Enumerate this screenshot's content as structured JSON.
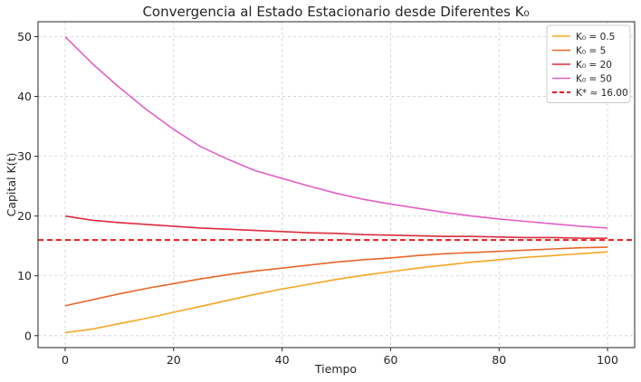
{
  "chart_data": {
    "type": "line",
    "title": "Convergencia al Estado Estacionario desde Diferentes K₀",
    "xlabel": "Tiempo",
    "ylabel": "Capital K(t)",
    "xlim": [
      -5,
      105
    ],
    "ylim": [
      -2,
      52.5
    ],
    "xticks": [
      0,
      20,
      40,
      60,
      80,
      100
    ],
    "yticks": [
      0,
      10,
      20,
      30,
      40,
      50
    ],
    "grid": true,
    "legend_position": "top-right",
    "steady_state": {
      "name": "K* ≈ 16.00",
      "value": 16.0,
      "color": "#e41a1c",
      "style": "dashed"
    },
    "series": [
      {
        "name": "K₀ = 0.5",
        "color": "#f5a623",
        "x": [
          0,
          5,
          10,
          15,
          20,
          25,
          30,
          35,
          40,
          45,
          50,
          55,
          60,
          65,
          70,
          75,
          80,
          85,
          90,
          95,
          100
        ],
        "y": [
          0.5,
          1.1,
          2.0,
          2.9,
          3.9,
          4.9,
          5.9,
          6.9,
          7.8,
          8.6,
          9.4,
          10.1,
          10.7,
          11.3,
          11.8,
          12.3,
          12.7,
          13.1,
          13.4,
          13.7,
          14.0
        ]
      },
      {
        "name": "K₀ = 5",
        "color": "#e8672a",
        "x": [
          0,
          5,
          10,
          15,
          20,
          25,
          30,
          35,
          40,
          45,
          50,
          55,
          60,
          65,
          70,
          75,
          80,
          85,
          90,
          95,
          100
        ],
        "y": [
          5.0,
          6.0,
          7.0,
          7.9,
          8.7,
          9.5,
          10.2,
          10.8,
          11.3,
          11.8,
          12.3,
          12.7,
          13.0,
          13.4,
          13.7,
          13.9,
          14.1,
          14.3,
          14.5,
          14.7,
          14.8
        ]
      },
      {
        "name": "K₀ = 20",
        "color": "#dc2b3e",
        "x": [
          0,
          5,
          10,
          15,
          20,
          25,
          30,
          35,
          40,
          45,
          50,
          55,
          60,
          65,
          70,
          75,
          80,
          85,
          90,
          95,
          100
        ],
        "y": [
          20.0,
          19.3,
          18.9,
          18.6,
          18.3,
          18.0,
          17.8,
          17.6,
          17.4,
          17.2,
          17.1,
          16.9,
          16.8,
          16.7,
          16.6,
          16.6,
          16.5,
          16.4,
          16.4,
          16.3,
          16.3
        ]
      },
      {
        "name": "K₀ = 50",
        "color": "#e35fc6",
        "x": [
          0,
          5,
          10,
          15,
          20,
          25,
          30,
          35,
          40,
          45,
          50,
          55,
          60,
          65,
          70,
          75,
          80,
          85,
          90,
          95,
          100
        ],
        "y": [
          50.0,
          45.5,
          41.5,
          37.8,
          34.5,
          31.6,
          29.5,
          27.6,
          26.3,
          25.0,
          23.8,
          22.8,
          22.0,
          21.3,
          20.6,
          20.0,
          19.5,
          19.1,
          18.7,
          18.3,
          18.0
        ]
      }
    ]
  }
}
